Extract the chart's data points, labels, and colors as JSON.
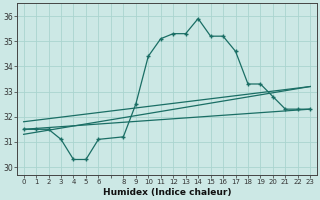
{
  "xlabel": "Humidex (Indice chaleur)",
  "background_color": "#cce8e5",
  "line_color": "#1a6e65",
  "grid_color": "#aad4cf",
  "xlim": [
    -0.5,
    23.5
  ],
  "ylim": [
    29.7,
    36.5
  ],
  "yticks": [
    30,
    31,
    32,
    33,
    34,
    35,
    36
  ],
  "xtick_positions": [
    0,
    1,
    2,
    3,
    4,
    5,
    6,
    7,
    8,
    9,
    10,
    11,
    12,
    13,
    14,
    15,
    16,
    17,
    18,
    19,
    20,
    21,
    22,
    23
  ],
  "xtick_labels": [
    "0",
    "1",
    "2",
    "3",
    "4",
    "5",
    "6",
    "",
    "8",
    "9",
    "10",
    "11",
    "12",
    "13",
    "14",
    "15",
    "16",
    "17",
    "18",
    "19",
    "20",
    "21",
    "22",
    "23"
  ],
  "series1_x": [
    0,
    1,
    2,
    3,
    4,
    5,
    6,
    8,
    9,
    10,
    11,
    12,
    13,
    14,
    15,
    16,
    17,
    18,
    19,
    20,
    21,
    22,
    23
  ],
  "series1_y": [
    31.5,
    31.5,
    31.5,
    31.1,
    30.3,
    30.3,
    31.1,
    31.2,
    32.5,
    34.4,
    35.1,
    35.3,
    35.3,
    35.9,
    35.2,
    35.2,
    34.6,
    33.3,
    33.3,
    32.8,
    32.3,
    32.3,
    32.3
  ],
  "series2_x": [
    0,
    23
  ],
  "series2_y": [
    31.5,
    32.3
  ],
  "series3_x": [
    0,
    23
  ],
  "series3_y": [
    31.3,
    33.2
  ],
  "series4_x": [
    0,
    23
  ],
  "series4_y": [
    31.8,
    33.2
  ]
}
